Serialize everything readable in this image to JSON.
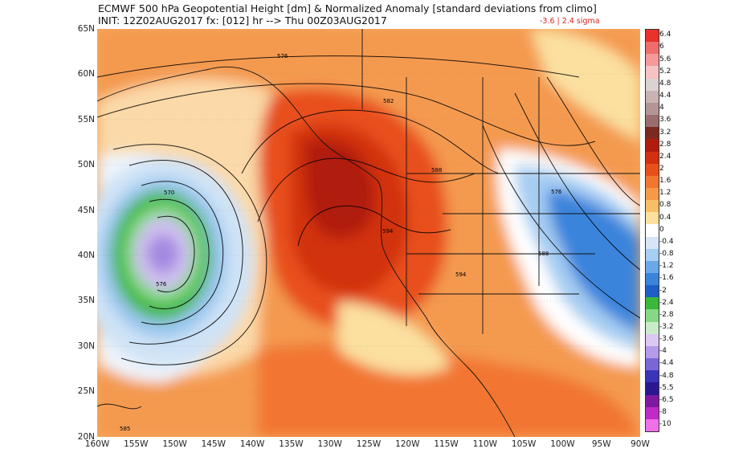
{
  "header": {
    "title": "ECMWF 500 hPa Geopotential Height [dm] & Normalized Anomaly [standard deviations from climo]",
    "subtitle": "INIT: 12Z02AUG2017  fx: [012] hr --> Thu 00Z03AUG2017",
    "minmax": "-3.6 | 2.4 sigma"
  },
  "map": {
    "lat_labels": [
      "65N",
      "60N",
      "55N",
      "50N",
      "45N",
      "40N",
      "35N",
      "30N",
      "25N",
      "20N"
    ],
    "lon_labels": [
      "160W",
      "155W",
      "150W",
      "145W",
      "140W",
      "135W",
      "130W",
      "125W",
      "120W",
      "115W",
      "110W",
      "105W",
      "100W",
      "95W",
      "90W"
    ],
    "contour_labels": [
      "576",
      "582",
      "588",
      "570",
      "576",
      "594",
      "594",
      "576",
      "588",
      "585"
    ]
  },
  "colorbar": {
    "labels": [
      "6.4",
      "6",
      "5.6",
      "5.2",
      "4.8",
      "4.4",
      "4",
      "3.6",
      "3.2",
      "2.8",
      "2.4",
      "2",
      "1.6",
      "1.2",
      "0.8",
      "0.4",
      "0",
      "-0.4",
      "-0.8",
      "-1.2",
      "-1.6",
      "-2",
      "-2.4",
      "-2.8",
      "-3.2",
      "-3.6",
      "-4",
      "-4.4",
      "-4.8",
      "-5.5",
      "-6.5",
      "-8",
      "-10"
    ],
    "colors": [
      "#e8322a",
      "#ee6e6e",
      "#f49a9a",
      "#f6c2c2",
      "#ddd2d2",
      "#c8b2b2",
      "#b39595",
      "#9a6e6e",
      "#7a2a1e",
      "#b01c0e",
      "#d23010",
      "#e8501a",
      "#f27630",
      "#f69a48",
      "#f8be66",
      "#fbe0a0",
      "#ffffff",
      "#d6e6f6",
      "#a6cdf2",
      "#6aa8ea",
      "#3a84dc",
      "#1e5ec6",
      "#3ab83a",
      "#86d886",
      "#c8ecc8",
      "#dcc8f4",
      "#b49ae8",
      "#7a66d6",
      "#3a34b8",
      "#2a1890",
      "#7e1aa0",
      "#c02ac8",
      "#f070e8"
    ]
  }
}
